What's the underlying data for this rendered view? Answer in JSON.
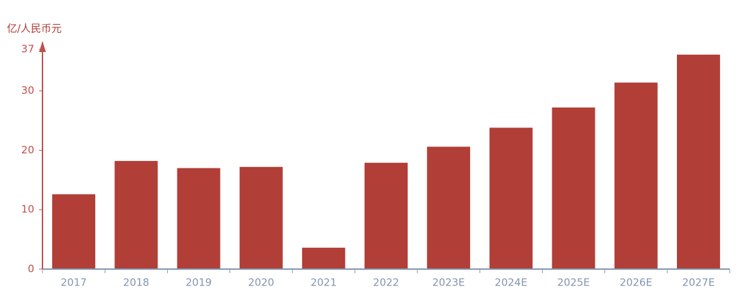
{
  "chart_data": {
    "type": "bar",
    "y_axis_label": "亿/人民币元",
    "categories": [
      "2017",
      "2018",
      "2019",
      "2020",
      "2021",
      "2022",
      "2023E",
      "2024E",
      "2025E",
      "2026E",
      "2027E"
    ],
    "values": [
      12.6,
      18.2,
      17.0,
      17.2,
      3.6,
      17.9,
      20.6,
      23.8,
      27.2,
      31.4,
      36.1
    ],
    "color": "#b13e37",
    "ylim": [
      0,
      37
    ],
    "yticks": [
      0,
      10,
      20,
      30,
      37
    ]
  }
}
